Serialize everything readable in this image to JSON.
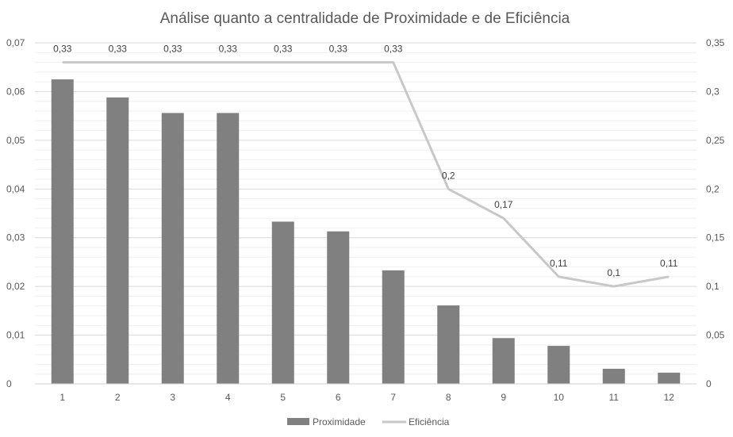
{
  "chart_data": {
    "type": "bar",
    "title": "Análise quanto a centralidade de Proximidade e de Eficiência",
    "categories": [
      "1",
      "2",
      "3",
      "4",
      "5",
      "6",
      "7",
      "8",
      "9",
      "10",
      "11",
      "12"
    ],
    "series": [
      {
        "name": "Proximidade",
        "kind": "bar",
        "axis": "left",
        "color": "#808080",
        "values": [
          0.0625,
          0.0588,
          0.0556,
          0.0556,
          0.0333,
          0.0313,
          0.0233,
          0.0161,
          0.0094,
          0.0078,
          0.0031,
          0.0023
        ]
      },
      {
        "name": "Eficiência",
        "kind": "line",
        "axis": "right",
        "color": "#c8c8c8",
        "values": [
          0.33,
          0.33,
          0.33,
          0.33,
          0.33,
          0.33,
          0.33,
          0.2,
          0.17,
          0.11,
          0.1,
          0.11
        ],
        "labels": [
          "0,33",
          "0,33",
          "0,33",
          "0,33",
          "0,33",
          "0,33",
          "0,33",
          "0,2",
          "0,17",
          "0,11",
          "0,1",
          "0,11"
        ]
      }
    ],
    "y_left": {
      "ylim": [
        0,
        0.07
      ],
      "ticks": [
        0,
        0.01,
        0.02,
        0.03,
        0.04,
        0.05,
        0.06,
        0.07
      ],
      "tick_labels": [
        "0",
        "0,01",
        "0,02",
        "0,03",
        "0,04",
        "0,05",
        "0,06",
        "0,07"
      ]
    },
    "y_right": {
      "ylim": [
        0,
        0.35
      ],
      "ticks": [
        0,
        0.05,
        0.1,
        0.15,
        0.2,
        0.25,
        0.3,
        0.35
      ],
      "tick_labels": [
        "0",
        "0,05",
        "0,1",
        "0,15",
        "0,2",
        "0,25",
        "0,3",
        "0,35"
      ]
    },
    "grid": true,
    "minor_grid": true,
    "legend": "bottom-center",
    "gridline_color": "#d9d9d9",
    "minor_gridline_color": "#efefef"
  }
}
